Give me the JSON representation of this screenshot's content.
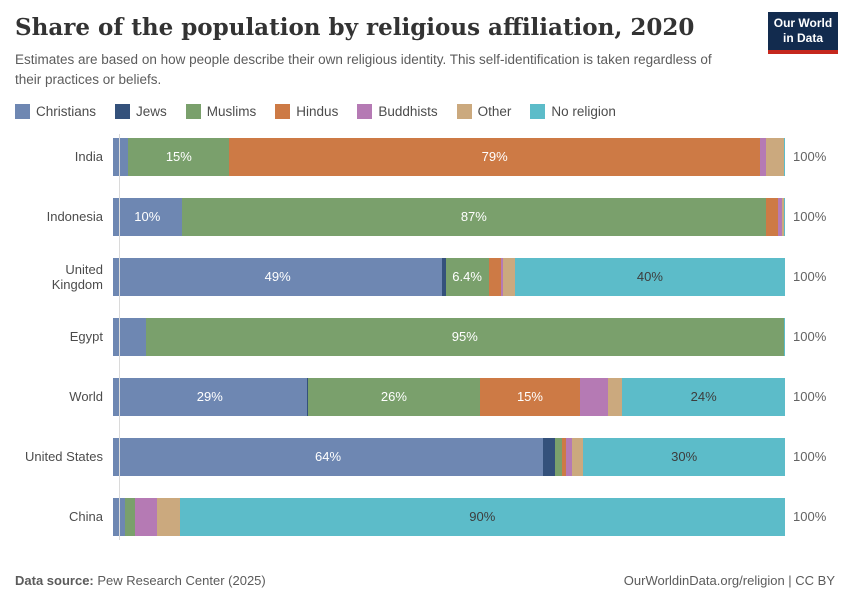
{
  "header": {
    "title": "Share of the population by religious affiliation, 2020",
    "subtitle": "Estimates are based on how people describe their own religious identity. This self-identification is taken regardless of their practices or beliefs."
  },
  "logo": {
    "line1": "Our World",
    "line2": "in Data",
    "bg_color": "#122b4e",
    "accent_color": "#c5271d"
  },
  "chart_data": {
    "type": "bar",
    "stacked": true,
    "orientation": "horizontal",
    "unit": "%",
    "xlim": [
      0,
      100
    ],
    "grid": false,
    "legend_position": "top",
    "categories": [
      "India",
      "Indonesia",
      "United Kingdom",
      "Egypt",
      "World",
      "United States",
      "China"
    ],
    "series": [
      {
        "name": "Christians",
        "color": "#6e87b2",
        "label_color": "#ffffff",
        "values": [
          2.3,
          10.2,
          49,
          4.9,
          28.8,
          64,
          1.8
        ],
        "labels": [
          "",
          "10%",
          "49%",
          "",
          "29%",
          "64%",
          ""
        ]
      },
      {
        "name": "Jews",
        "color": "#34517b",
        "label_color": "#ffffff",
        "values": [
          0,
          0,
          0.5,
          0,
          0.2,
          1.7,
          0
        ],
        "labels": [
          "",
          "",
          "",
          "",
          "",
          "",
          ""
        ]
      },
      {
        "name": "Muslims",
        "color": "#7aa06c",
        "label_color": "#ffffff",
        "values": [
          15,
          87,
          6.4,
          95,
          25.6,
          1.1,
          1.5
        ],
        "labels": [
          "15%",
          "87%",
          "6.4%",
          "95%",
          "26%",
          "",
          ""
        ]
      },
      {
        "name": "Hindus",
        "color": "#cd7a45",
        "label_color": "#ffffff",
        "values": [
          79,
          1.7,
          1.8,
          0,
          14.9,
          0.6,
          0
        ],
        "labels": [
          "79%",
          "",
          "",
          "",
          "15%",
          "",
          ""
        ]
      },
      {
        "name": "Buddhists",
        "color": "#b57ab4",
        "label_color": "#ffffff",
        "values": [
          0.8,
          0.7,
          0.4,
          0,
          4.1,
          0.9,
          3.3
        ],
        "labels": [
          "",
          "",
          "",
          "",
          "",
          "",
          ""
        ]
      },
      {
        "name": "Other",
        "color": "#cba97e",
        "label_color": "#3d3d3d",
        "values": [
          2.8,
          0.3,
          1.7,
          0.1,
          2.2,
          1.7,
          3.3
        ],
        "labels": [
          "",
          "",
          "",
          "",
          "",
          "",
          ""
        ]
      },
      {
        "name": "No religion",
        "color": "#5cbcc9",
        "label_color": "#3d3d3d",
        "values": [
          0.1,
          0.1,
          40.2,
          0.1,
          24.2,
          30,
          90.1
        ],
        "labels": [
          "",
          "",
          "40%",
          "",
          "24%",
          "30%",
          "90%"
        ]
      }
    ],
    "row_total_label": "100%"
  },
  "footer": {
    "source_label": "Data source:",
    "source_value": "Pew Research Center (2025)",
    "credit": "OurWorldinData.org/religion | CC BY"
  }
}
